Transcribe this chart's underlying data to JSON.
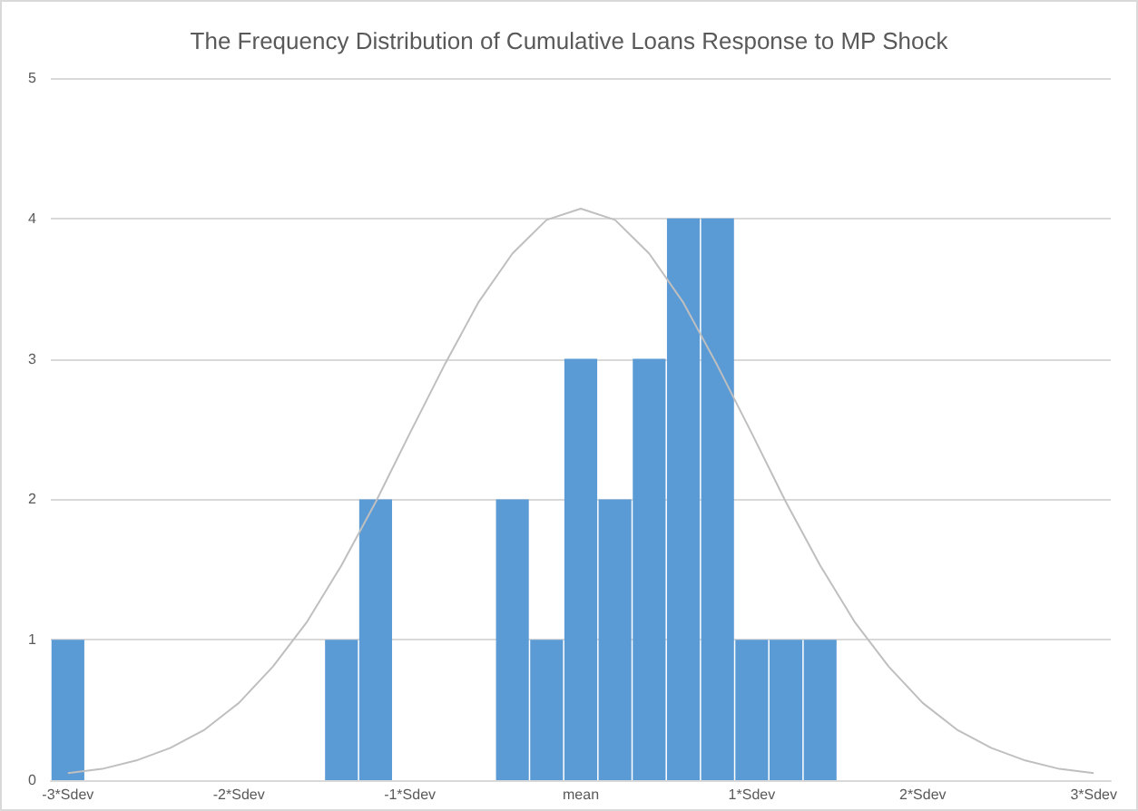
{
  "chart_data": {
    "type": "bar",
    "title": "The Frequency Distribution of Cumulative Loans Response to MP Shock",
    "categories": [
      "-3*Sdev",
      null,
      null,
      null,
      null,
      "-2*Sdev",
      null,
      null,
      null,
      null,
      "-1*Sdev",
      null,
      null,
      null,
      null,
      "mean",
      null,
      null,
      null,
      null,
      "1*Sdev",
      null,
      null,
      null,
      null,
      "2*Sdev",
      null,
      null,
      null,
      null,
      "3*Sdev"
    ],
    "series": [
      {
        "color": "#5b9bd5",
        "values": [
          1,
          0,
          0,
          0,
          0,
          0,
          0,
          0,
          1,
          2,
          0,
          0,
          0,
          2,
          1,
          3,
          2,
          3,
          4,
          4,
          1,
          1,
          1,
          0,
          0,
          0,
          0,
          0,
          0,
          0,
          0
        ]
      },
      {
        "type": "line",
        "color": "#bfbfbf",
        "marker": "none",
        "values": [
          0.05,
          0.08,
          0.14,
          0.23,
          0.36,
          0.55,
          0.81,
          1.13,
          1.53,
          1.98,
          2.47,
          2.95,
          3.4,
          3.75,
          3.99,
          4.07,
          3.99,
          3.75,
          3.4,
          2.95,
          2.47,
          1.98,
          1.53,
          1.13,
          0.81,
          0.55,
          0.36,
          0.23,
          0.14,
          0.08,
          0.05
        ]
      }
    ],
    "ylim": [
      0,
      5
    ],
    "yticks": [
      0,
      1,
      2,
      3,
      4,
      5
    ],
    "grid": "y"
  }
}
